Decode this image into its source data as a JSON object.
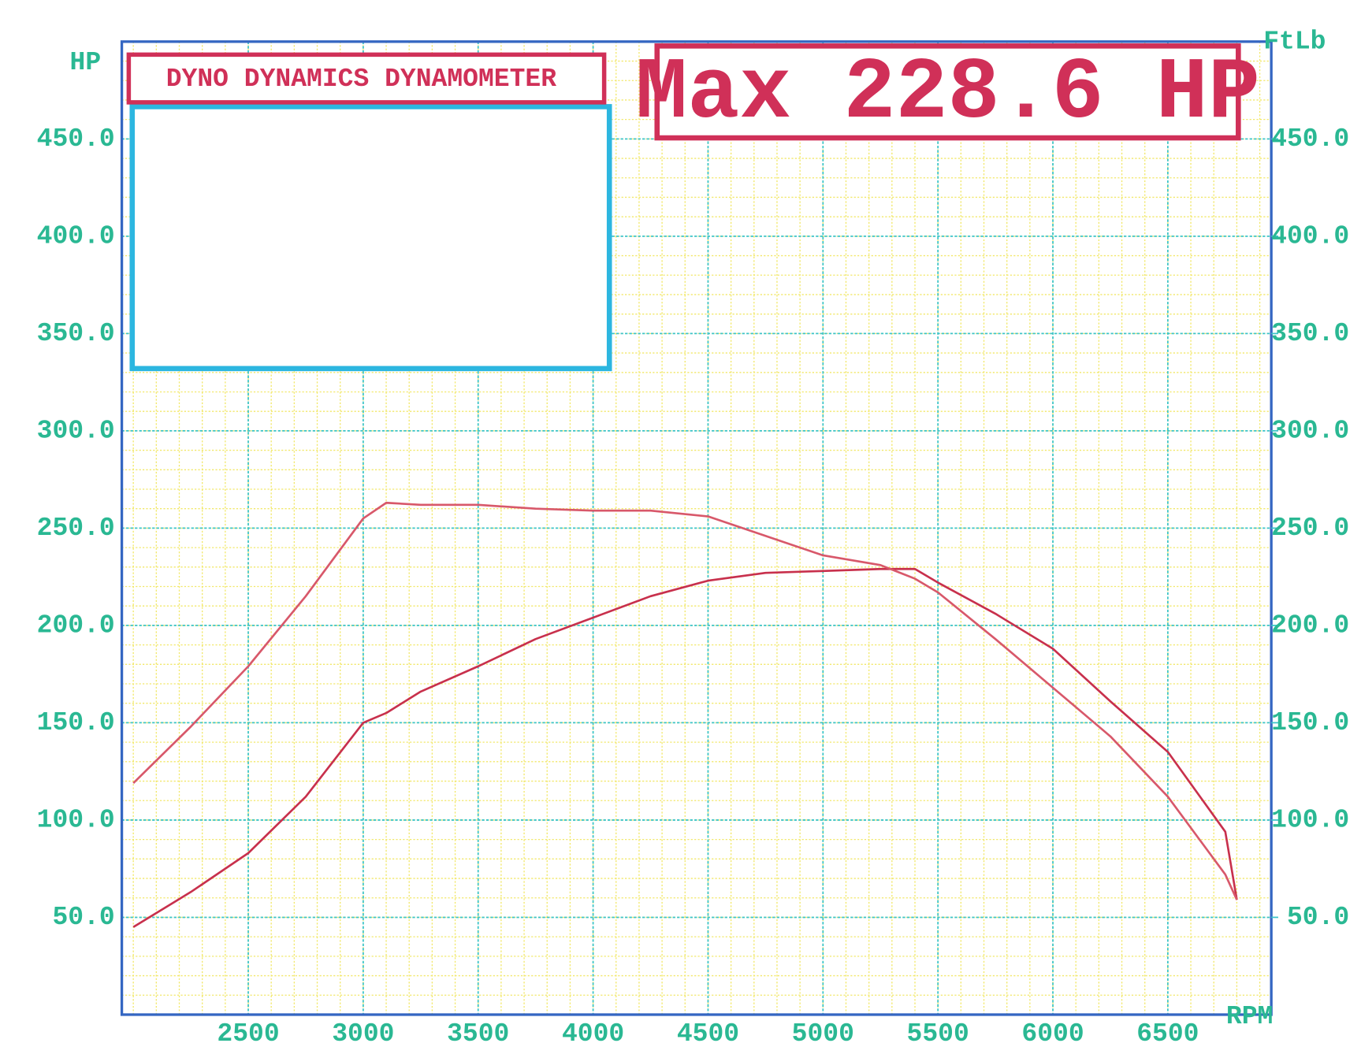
{
  "chart_data": {
    "type": "line",
    "title": "DYNO DYNAMICS DYNAMOMETER",
    "annotation": "Max 228.6 HP",
    "y_label": "HP",
    "y2_label": "FtLb",
    "x_label": "RPM",
    "x": [
      2000,
      2250,
      2500,
      2750,
      3000,
      3100,
      3250,
      3500,
      3750,
      4000,
      4250,
      4500,
      4750,
      5000,
      5250,
      5400,
      5500,
      5750,
      6000,
      6250,
      6500,
      6750,
      6800
    ],
    "series": [
      {
        "color": "#c8304c",
        "values": [
          45,
          63,
          83,
          112,
          150,
          155,
          166,
          179,
          193,
          204,
          215,
          223,
          227,
          228,
          229,
          229,
          222,
          206,
          188,
          161,
          135,
          94,
          59
        ]
      },
      {
        "color": "#d8586a",
        "axis": "y2",
        "values": [
          119,
          148,
          179,
          215,
          255,
          263,
          262,
          262,
          260,
          259,
          259,
          256,
          246,
          236,
          231,
          224,
          217,
          193,
          168,
          143,
          112,
          72,
          59
        ]
      }
    ],
    "xlim": [
      1950,
      6950
    ],
    "xticks": [
      2500,
      3000,
      3500,
      4000,
      4500,
      5000,
      5500,
      6000,
      6500
    ],
    "ylim": [
      0,
      500
    ],
    "yticks": [
      {
        "value": 50,
        "label": "50.0"
      },
      {
        "value": 100,
        "label": "100.0"
      },
      {
        "value": 150,
        "label": "150.0"
      },
      {
        "value": 200,
        "label": "200.0"
      },
      {
        "value": 250,
        "label": "250.0"
      },
      {
        "value": 300,
        "label": "300.0"
      },
      {
        "value": 350,
        "label": "350.0"
      },
      {
        "value": 400,
        "label": "400.0"
      },
      {
        "value": 450,
        "label": "450.0"
      }
    ],
    "y2lim": [
      0,
      500
    ],
    "y2ticks": [
      {
        "value": 50,
        "label": "50.0"
      },
      {
        "value": 100,
        "label": "100.0"
      },
      {
        "value": 150,
        "label": "150.0"
      },
      {
        "value": 200,
        "label": "200.0"
      },
      {
        "value": 250,
        "label": "250.0"
      },
      {
        "value": 300,
        "label": "300.0"
      },
      {
        "value": 350,
        "label": "350.0"
      },
      {
        "value": 400,
        "label": "400.0"
      },
      {
        "value": 450,
        "label": "450.0"
      }
    ],
    "grid": true
  }
}
